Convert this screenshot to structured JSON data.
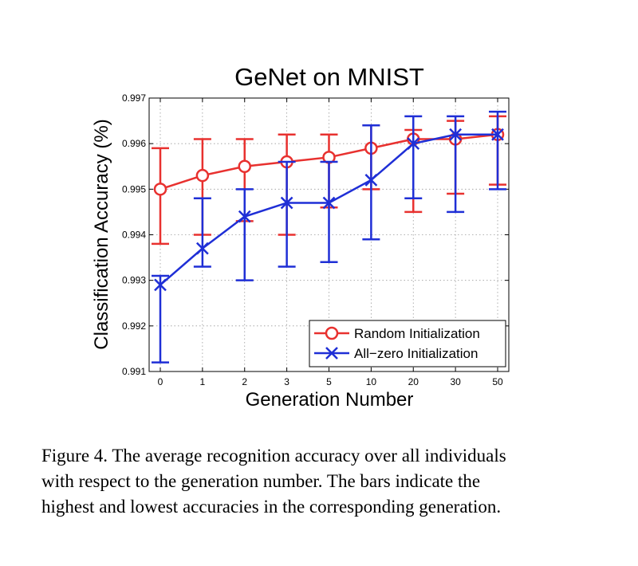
{
  "chart_data": {
    "type": "line",
    "title": "GeNet on MNIST",
    "xlabel": "Generation Number",
    "ylabel": "Classification Accuracy (%)",
    "categories": [
      "0",
      "1",
      "2",
      "3",
      "5",
      "10",
      "20",
      "30",
      "50"
    ],
    "ylim": [
      0.991,
      0.997
    ],
    "yticks": [
      "0.991",
      "0.992",
      "0.993",
      "0.994",
      "0.995",
      "0.996",
      "0.997"
    ],
    "grid": true,
    "legend_position": "bottom-right",
    "series": [
      {
        "name": "Random Initialization",
        "color": "#e8312f",
        "marker": "circle",
        "values": [
          0.995,
          0.9953,
          0.9955,
          0.9956,
          0.9957,
          0.9959,
          0.9961,
          0.9961,
          0.9962
        ],
        "upper": [
          0.9959,
          0.9961,
          0.9961,
          0.9962,
          0.9962,
          0.9964,
          0.9963,
          0.9965,
          0.9966
        ],
        "lower": [
          0.9938,
          0.994,
          0.9943,
          0.994,
          0.9946,
          0.995,
          0.9945,
          0.9949,
          0.9951
        ]
      },
      {
        "name": "All−zero Initialization",
        "color": "#1f2fd6",
        "marker": "x",
        "values": [
          0.9929,
          0.9937,
          0.9944,
          0.9947,
          0.9947,
          0.9952,
          0.996,
          0.9962,
          0.9962
        ],
        "upper": [
          0.9931,
          0.9948,
          0.995,
          0.9956,
          0.9956,
          0.9964,
          0.9966,
          0.9966,
          0.9967
        ],
        "lower": [
          0.9912,
          0.9933,
          0.993,
          0.9933,
          0.9934,
          0.9939,
          0.9948,
          0.9945,
          0.995
        ]
      }
    ]
  },
  "caption": {
    "lines": [
      "Figure 4.   The average recognition accuracy over all individuals",
      "with respect to the generation number.  The bars indicate the",
      "highest and lowest accuracies in the corresponding generation."
    ]
  }
}
